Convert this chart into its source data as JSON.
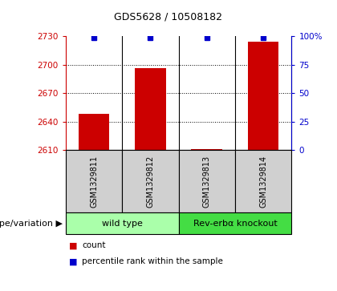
{
  "title": "GDS5628 / 10508182",
  "samples": [
    "GSM1329811",
    "GSM1329812",
    "GSM1329813",
    "GSM1329814"
  ],
  "bar_values": [
    2648,
    2696,
    2611,
    2724
  ],
  "percentile_values": [
    99,
    99,
    99,
    99
  ],
  "ylim_left": [
    2610,
    2730
  ],
  "yticks_left": [
    2610,
    2640,
    2670,
    2700,
    2730
  ],
  "ylim_right": [
    0,
    100
  ],
  "yticks_right": [
    0,
    25,
    50,
    75,
    100
  ],
  "bar_color": "#cc0000",
  "percentile_color": "#0000cc",
  "bar_width": 0.55,
  "groups": [
    {
      "label": "wild type",
      "samples": [
        0,
        1
      ],
      "color": "#aaffaa"
    },
    {
      "label": "Rev-erbα knockout",
      "samples": [
        2,
        3
      ],
      "color": "#44dd44"
    }
  ],
  "group_label_prefix": "genotype/variation",
  "legend_count_label": "count",
  "legend_percentile_label": "percentile rank within the sample",
  "grid_color": "#000000",
  "left_tick_color": "#cc0000",
  "right_tick_color": "#0000cc",
  "title_fontsize": 9,
  "tick_fontsize": 7.5,
  "sample_fontsize": 7,
  "group_fontsize": 8,
  "legend_fontsize": 7.5
}
